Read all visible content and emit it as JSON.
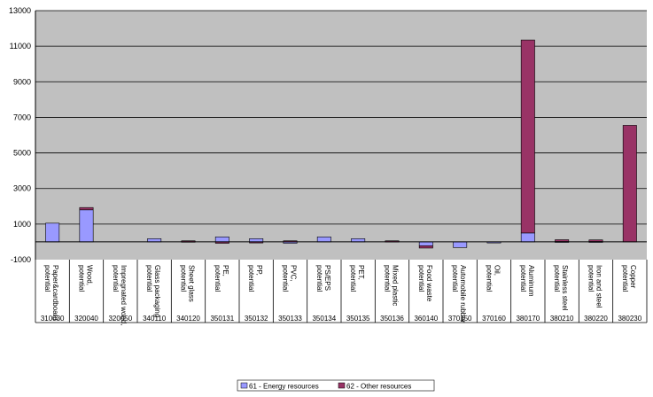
{
  "chart_data": {
    "type": "bar",
    "stacked": true,
    "grid": "horizontal",
    "legend_position": "bottom-center",
    "ylim": [
      -1000,
      13000
    ],
    "yticks": [
      -1000,
      1000,
      3000,
      5000,
      7000,
      9000,
      11000,
      13000
    ],
    "categories": [
      "Paper&cardboard potential",
      "Wood, potential",
      "Impregnated wood, potential",
      "Glass packaging potential",
      "Sheet glass potential",
      "PE, potential",
      "PP, potential",
      "PVC, potential",
      "PS/EPS potential",
      "PET, potential",
      "Mixed plastic potential",
      "Food waste potential",
      "Automobile rubber potential",
      "Oil, potential",
      "Aluminum potential",
      "Stainless steel potential",
      "Iron and steel potential",
      "Copper potential"
    ],
    "codes": [
      "310030",
      "320040",
      "320050",
      "340110",
      "340120",
      "350131",
      "350132",
      "350133",
      "350134",
      "350135",
      "350136",
      "360140",
      "370150",
      "370160",
      "380170",
      "380210",
      "380220",
      "380230"
    ],
    "series": [
      {
        "name": "61 - Energy resources",
        "color": "#9999ff",
        "values": [
          1050,
          1800,
          0,
          180,
          30,
          280,
          180,
          -80,
          280,
          180,
          40,
          -220,
          -320,
          -60,
          500,
          20,
          20,
          0
        ]
      },
      {
        "name": "62 - Other resources",
        "color": "#993366",
        "values": [
          0,
          130,
          0,
          0,
          30,
          -80,
          -60,
          60,
          0,
          0,
          20,
          -130,
          0,
          0,
          10850,
          100,
          90,
          6550
        ]
      }
    ]
  }
}
